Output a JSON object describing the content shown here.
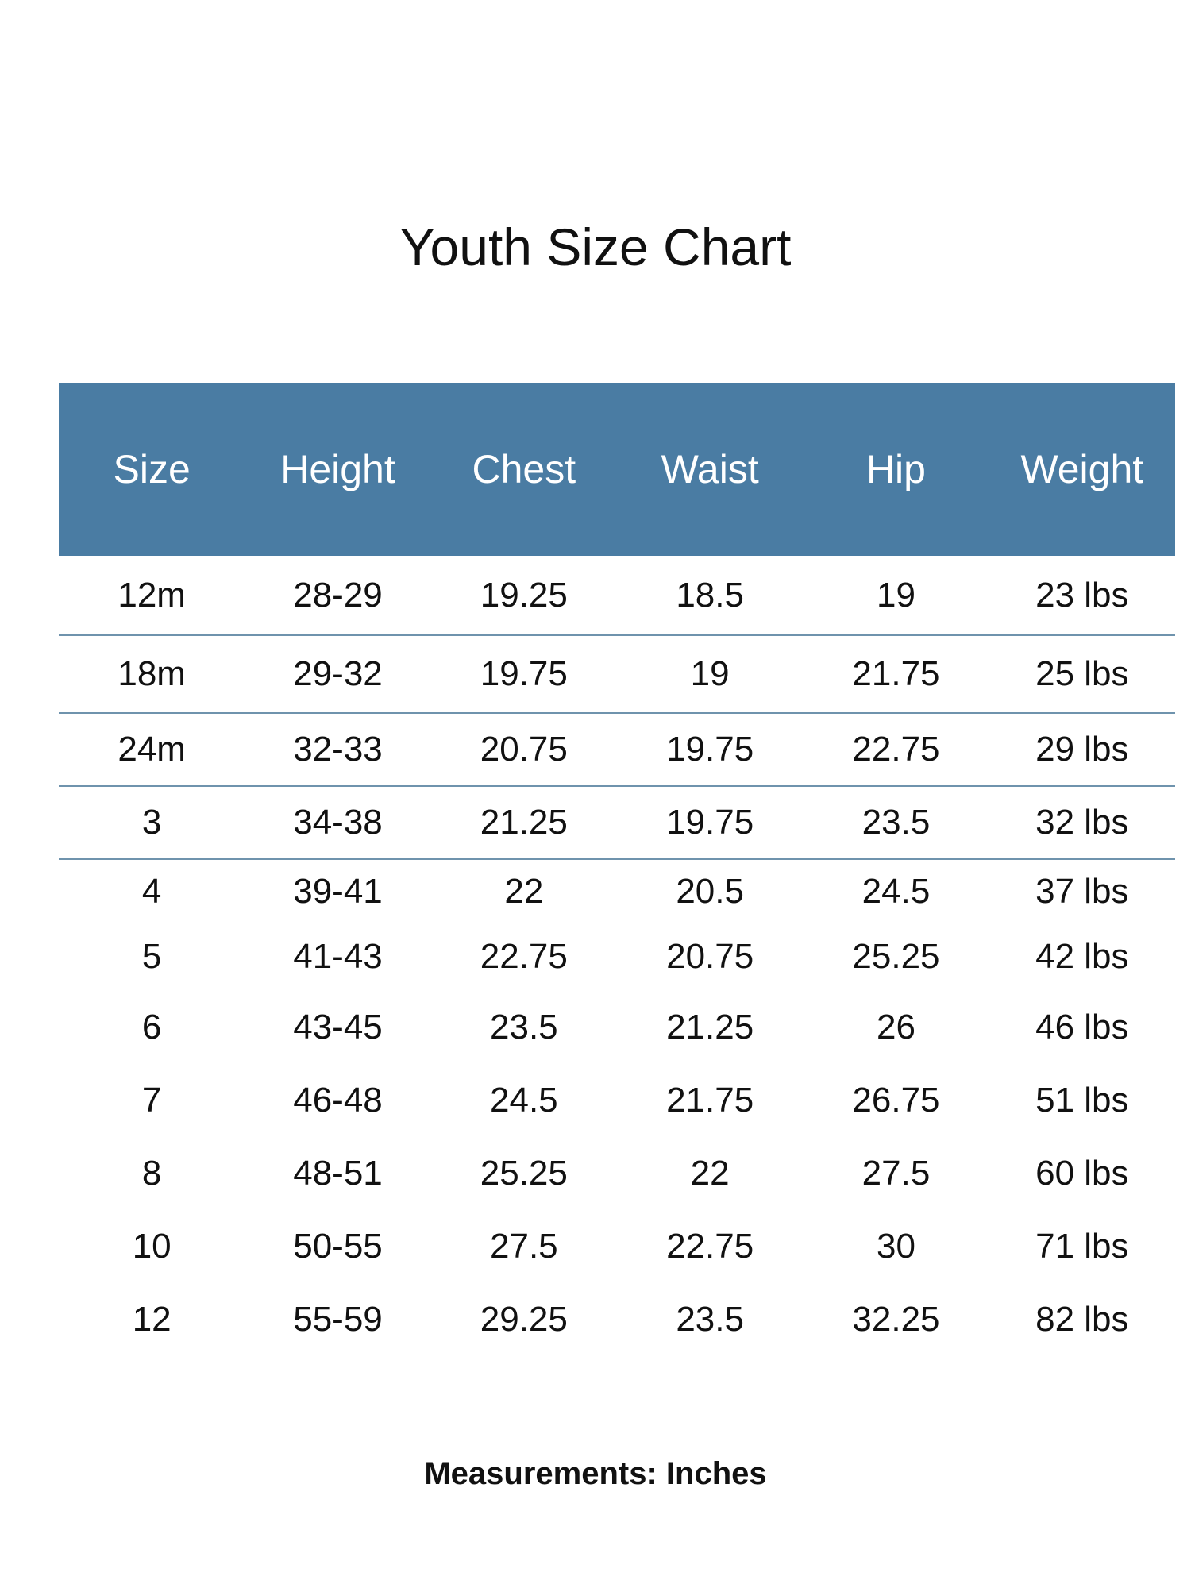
{
  "title": "Youth Size Chart",
  "columns": [
    "Size",
    "Height",
    "Chest",
    "Waist",
    "Hip",
    "Weight"
  ],
  "rows": [
    [
      "12m",
      "28-29",
      "19.25",
      "18.5",
      "19",
      "23 lbs"
    ],
    [
      "18m",
      "29-32",
      "19.75",
      "19",
      "21.75",
      "25 lbs"
    ],
    [
      "24m",
      "32-33",
      "20.75",
      "19.75",
      "22.75",
      "29 lbs"
    ],
    [
      "3",
      "34-38",
      "21.25",
      "19.75",
      "23.5",
      "32 lbs"
    ],
    [
      "4",
      "39-41",
      "22",
      "20.5",
      "24.5",
      "37 lbs"
    ],
    [
      "5",
      "41-43",
      "22.75",
      "20.75",
      "25.25",
      "42 lbs"
    ],
    [
      "6",
      "43-45",
      "23.5",
      "21.25",
      "26",
      "46 lbs"
    ],
    [
      "7",
      "46-48",
      "24.5",
      "21.75",
      "26.75",
      "51 lbs"
    ],
    [
      "8",
      "48-51",
      "25.25",
      "22",
      "27.5",
      "60 lbs"
    ],
    [
      "10",
      "50-55",
      "27.5",
      "22.75",
      "30",
      "71 lbs"
    ],
    [
      "12",
      "55-59",
      "29.25",
      "23.5",
      "32.25",
      "82 lbs"
    ]
  ],
  "footnote": "Measurements: Inches",
  "colors": {
    "header_background": "#4a7ca3",
    "header_text": "#ffffff",
    "row_divider": "#6f93ad"
  }
}
